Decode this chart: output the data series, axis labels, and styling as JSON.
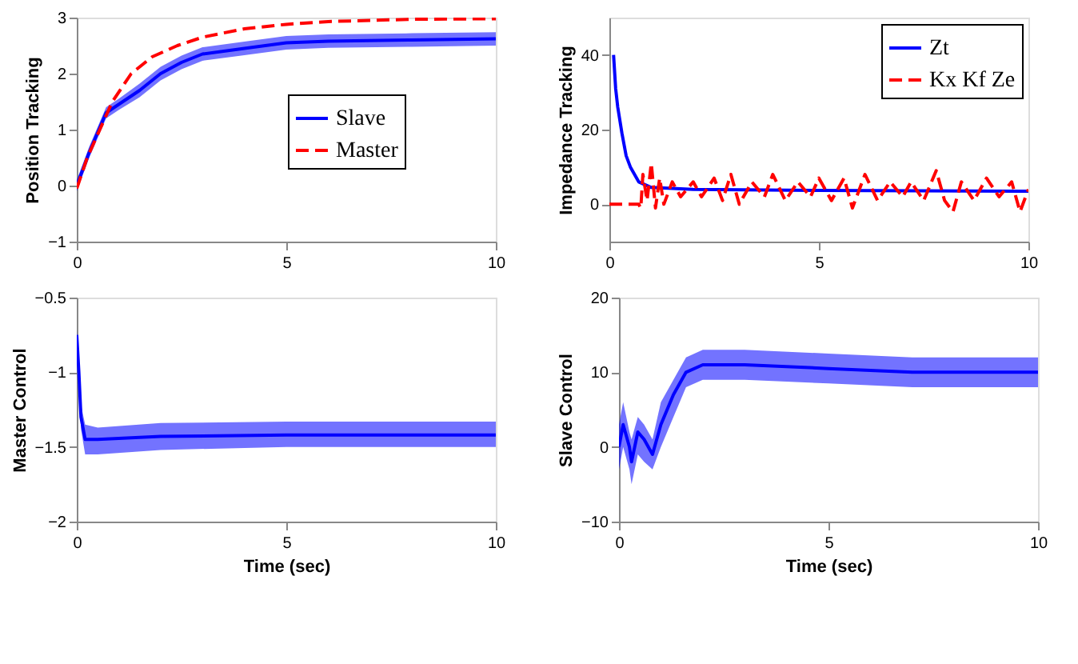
{
  "chart_data": [
    {
      "type": "line",
      "ylabel": "Position Tracking",
      "xlim": [
        0,
        10
      ],
      "ylim": [
        -1,
        3
      ],
      "xticks": [
        0,
        5,
        10
      ],
      "yticks": [
        -1,
        0,
        1,
        2,
        3
      ],
      "grid": false,
      "legend": "right",
      "series": [
        {
          "name": "Slave",
          "color": "#0000ff",
          "line_style": "solid",
          "x": [
            0,
            0.3,
            0.7,
            1.0,
            1.5,
            2,
            2.5,
            3,
            4,
            5,
            6,
            8,
            10
          ],
          "values": [
            0,
            0.6,
            1.3,
            1.45,
            1.7,
            2.0,
            2.2,
            2.35,
            2.45,
            2.55,
            2.58,
            2.6,
            2.62
          ],
          "lower": [
            -0.1,
            0.5,
            1.2,
            1.35,
            1.58,
            1.88,
            2.08,
            2.23,
            2.33,
            2.43,
            2.46,
            2.48,
            2.5
          ],
          "upper": [
            0.1,
            0.7,
            1.4,
            1.55,
            1.82,
            2.12,
            2.32,
            2.47,
            2.57,
            2.67,
            2.7,
            2.72,
            2.74
          ]
        },
        {
          "name": "Master",
          "color": "#ff0000",
          "line_style": "dashed",
          "x": [
            0,
            0.25,
            0.55,
            0.85,
            1.3,
            1.8,
            2.4,
            3,
            4,
            5,
            6,
            7,
            8,
            10
          ],
          "values": [
            -0.05,
            0.5,
            1.0,
            1.5,
            2.0,
            2.3,
            2.5,
            2.65,
            2.8,
            2.88,
            2.93,
            2.95,
            2.97,
            2.98
          ]
        }
      ]
    },
    {
      "type": "line",
      "ylabel": "Impedance Tracking",
      "xlim": [
        0,
        10
      ],
      "ylim": [
        -10,
        50
      ],
      "xticks": [
        0,
        5,
        10
      ],
      "yticks": [
        0,
        20,
        40
      ],
      "grid": false,
      "legend": "top right",
      "series": [
        {
          "name": "Zt",
          "color": "#0000ff",
          "line_style": "solid",
          "x": [
            0.1,
            0.15,
            0.2,
            0.3,
            0.4,
            0.5,
            0.7,
            1,
            2,
            5,
            10
          ],
          "values": [
            40,
            31,
            26,
            19,
            13,
            10,
            6,
            4.5,
            4,
            3.7,
            3.5
          ]
        },
        {
          "name": "Kx Kf Ze",
          "color": "#ff0000",
          "line_style": "dashed",
          "x": [
            0,
            0.7,
            0.75,
            0.8,
            0.9,
            1.0,
            1.1,
            1.2,
            1.3,
            1.5,
            1.7,
            2.0,
            2.2,
            2.5,
            2.7,
            2.9,
            3.1,
            3.4,
            3.7,
            3.9,
            4.2,
            4.5,
            4.8,
            5.0,
            5.3,
            5.6,
            5.8,
            6.1,
            6.4,
            6.7,
            7.0,
            7.2,
            7.5,
            7.8,
            8.0,
            8.2,
            8.4,
            8.7,
            9.0,
            9.3,
            9.6,
            9.8,
            10
          ],
          "values": [
            0,
            0,
            -1,
            8,
            1,
            11,
            -1,
            7,
            0,
            6,
            2,
            6,
            2,
            7,
            1,
            8,
            0,
            6,
            2,
            8,
            1,
            6,
            2,
            7,
            1,
            7,
            -1,
            8,
            1,
            6,
            2,
            6,
            1,
            9,
            1,
            -2,
            6,
            1,
            7,
            2,
            6,
            -2,
            4
          ]
        }
      ]
    },
    {
      "type": "line",
      "ylabel": "Master Control",
      "xlabel": "Time (sec)",
      "xlim": [
        0,
        10
      ],
      "ylim": [
        -2,
        -0.5
      ],
      "xticks": [
        0,
        5,
        10
      ],
      "yticks": [
        -2,
        -1.5,
        -1,
        -0.5
      ],
      "grid": false,
      "series": [
        {
          "color": "#0000ff",
          "x": [
            0,
            0.05,
            0.1,
            0.2,
            0.5,
            2,
            5,
            10
          ],
          "values": [
            -0.75,
            -1.0,
            -1.3,
            -1.45,
            -1.45,
            -1.43,
            -1.42,
            -1.42
          ],
          "lower": [
            -0.78,
            -1.05,
            -1.38,
            -1.55,
            -1.55,
            -1.52,
            -1.5,
            -1.5
          ],
          "upper": [
            -0.72,
            -0.95,
            -1.22,
            -1.35,
            -1.37,
            -1.34,
            -1.33,
            -1.33
          ]
        }
      ]
    },
    {
      "type": "line",
      "ylabel": "Slave Control",
      "xlabel": "Time (sec)",
      "xlim": [
        0,
        10
      ],
      "ylim": [
        -10,
        20
      ],
      "xticks": [
        0,
        5,
        10
      ],
      "yticks": [
        -10,
        0,
        10,
        20
      ],
      "grid": false,
      "series": [
        {
          "color": "#0000ff",
          "x": [
            0,
            0.1,
            0.25,
            0.3,
            0.45,
            0.6,
            0.8,
            1.0,
            1.3,
            1.6,
            2,
            3,
            5,
            7,
            10
          ],
          "values": [
            0,
            3,
            0,
            -2,
            2,
            1,
            -1,
            3,
            7,
            10,
            11,
            11,
            10.5,
            10,
            10
          ],
          "lower": [
            -3,
            0,
            -3,
            -5,
            -1,
            -2,
            -3,
            0,
            4,
            8,
            9,
            9,
            8.5,
            8,
            8
          ],
          "upper": [
            3,
            6,
            2,
            1,
            4,
            3,
            1,
            6,
            9,
            12,
            13,
            13,
            12.5,
            12,
            12
          ]
        }
      ]
    }
  ]
}
